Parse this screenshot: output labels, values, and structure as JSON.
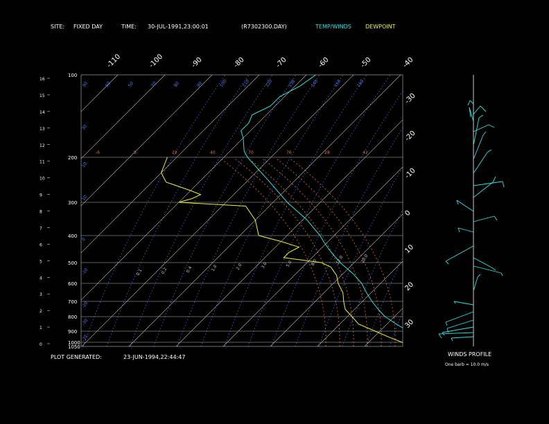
{
  "header": {
    "site_label": "SITE:",
    "site_value": "FIXED DAY",
    "time_label": "TIME:",
    "time_value": "30-JUL-1991,23:00:01",
    "file_name": "(R7302300.DAY)",
    "legend_temp": "TEMP/WINDS",
    "legend_dew": "DEWPOINT"
  },
  "footer": {
    "generated_label": "PLOT GENERATED:",
    "generated_value": "23-JUN-1994,22:44:47"
  },
  "winds_panel": {
    "title": "WINDS PROFILE",
    "barb_note": "One barb = 10.0 m/s"
  },
  "colors": {
    "temp": "#33e0e0",
    "dew": "#f0f040",
    "grid": "#bfbfbf",
    "mixing": "#5a7cff",
    "adiabat": "#e07050",
    "text": "#ffffff"
  },
  "chart_data": {
    "type": "line",
    "title": "",
    "pressure_ticks": [
      "100",
      "200",
      "300",
      "400",
      "500",
      "600",
      "700",
      "800",
      "900",
      "1000",
      "1050"
    ],
    "height_km_ticks": [
      "16",
      "15",
      "14",
      "13",
      "12",
      "11",
      "10",
      "9",
      "8",
      "7",
      "6",
      "5",
      "4",
      "3",
      "2",
      "1",
      "0"
    ],
    "isotherm_top_labels": [
      "-110",
      "-100",
      "-90",
      "-80",
      "-70",
      "-60",
      "-50",
      "-40"
    ],
    "isotherm_right_labels": [
      "-30",
      "-20",
      "-10",
      "0",
      "10",
      "20",
      "30"
    ],
    "mixing_ratio_labels": [
      "0.1",
      "0.2",
      "0.4",
      "1.0",
      "2.0",
      "3.0",
      "5.0",
      "8.0",
      "12.0",
      "20.0"
    ],
    "adiabat_labels_200": [
      "-6",
      "8",
      "22",
      "40",
      "70",
      "76",
      "28",
      "42"
    ],
    "adiabat_labels_100": [
      "90",
      "60",
      "50",
      "70",
      "80",
      "90",
      "100",
      "110",
      "120",
      "130",
      "140",
      "150",
      "160"
    ],
    "left_theta_labels": [
      "30",
      "10",
      "10",
      "0",
      "-10",
      "-20",
      "-30",
      "-35"
    ],
    "series": [
      {
        "name": "TEMP/WINDS",
        "points": [
          [
            1040,
            26
          ],
          [
            1000,
            24
          ],
          [
            950,
            20
          ],
          [
            900,
            16
          ],
          [
            850,
            12
          ],
          [
            800,
            8
          ],
          [
            750,
            5
          ],
          [
            700,
            2
          ],
          [
            650,
            -1
          ],
          [
            600,
            -4
          ],
          [
            550,
            -8
          ],
          [
            500,
            -13
          ],
          [
            450,
            -18
          ],
          [
            420,
            -21
          ],
          [
            400,
            -23
          ],
          [
            350,
            -29
          ],
          [
            300,
            -37
          ],
          [
            250,
            -45
          ],
          [
            200,
            -55
          ],
          [
            190,
            -57
          ],
          [
            170,
            -60
          ],
          [
            160,
            -62
          ],
          [
            150,
            -62
          ],
          [
            140,
            -63
          ],
          [
            130,
            -61
          ],
          [
            120,
            -61
          ],
          [
            110,
            -59
          ],
          [
            100,
            -58
          ]
        ]
      },
      {
        "name": "DEWPOINT",
        "points": [
          [
            1040,
            19
          ],
          [
            1000,
            17
          ],
          [
            950,
            13
          ],
          [
            900,
            9
          ],
          [
            850,
            4
          ],
          [
            800,
            1
          ],
          [
            750,
            -2
          ],
          [
            700,
            -4
          ],
          [
            650,
            -6
          ],
          [
            600,
            -9
          ],
          [
            560,
            -11
          ],
          [
            520,
            -14
          ],
          [
            500,
            -17
          ],
          [
            480,
            -26
          ],
          [
            460,
            -26
          ],
          [
            440,
            -25
          ],
          [
            420,
            -30
          ],
          [
            400,
            -36
          ],
          [
            350,
            -40
          ],
          [
            310,
            -45
          ],
          [
            300,
            -60
          ],
          [
            290,
            -58
          ],
          [
            280,
            -57
          ],
          [
            270,
            -60
          ],
          [
            250,
            -67
          ],
          [
            230,
            -70
          ],
          [
            200,
            -72
          ]
        ]
      }
    ]
  }
}
